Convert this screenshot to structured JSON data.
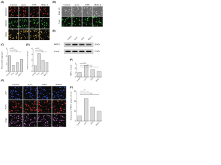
{
  "panels": [
    {
      "label": "(A)",
      "columns": [
        "Control",
        "H₂O₂",
        "DXS",
        "Mdivi-1"
      ],
      "rows": [
        "Mitotracker",
        "MitoSOX",
        "Merge"
      ]
    },
    {
      "label": "(B)",
      "columns": [
        "Control",
        "H₂O₂",
        "DXS",
        "Mdivi-1"
      ],
      "rows": [
        "Bright field",
        "Green"
      ]
    },
    {
      "label": "(E)",
      "columns": [
        "Control",
        "H₂O₂",
        "DXS",
        "Mdivi-1"
      ],
      "bands": [
        "PARP-1",
        "β-actin"
      ],
      "sizes": [
        "89 kDa",
        "42 kDa"
      ]
    },
    {
      "label": "(G)",
      "columns": [
        "Control",
        "H₂O₂",
        "DXS",
        "Mdivi-1"
      ],
      "rows": [
        "DAPI",
        "PARP-1",
        "Merge"
      ]
    }
  ],
  "chart_data": [
    {
      "type": "bar",
      "label": "(C)",
      "ylabel": "Mitochondrial length (μm)",
      "categories": [
        "Control",
        "H₂O₂",
        "DXS",
        "Mdivi-1"
      ],
      "values": [
        2.1,
        0.8,
        1.2,
        1.6
      ],
      "color": "#d9d9d9",
      "ylim": [
        0,
        3
      ],
      "yticks": [
        0,
        1,
        2,
        3
      ],
      "annotations": [
        "****",
        "***",
        "**"
      ]
    },
    {
      "type": "bar",
      "label": "(D)",
      "ylabel": "ROS fluorescence intensity",
      "categories": [
        "Control",
        "H₂O₂",
        "DXS",
        "Mdivi-1"
      ],
      "values": [
        1.0,
        3.2,
        2.0,
        1.6
      ],
      "color": "#d9d9d9",
      "ylim": [
        0,
        4
      ],
      "yticks": [
        0,
        1,
        2,
        3,
        4
      ],
      "annotations": [
        "****",
        "***",
        "****"
      ]
    },
    {
      "type": "bar",
      "label": "(F)",
      "ylabel": "PARP-1 / β-actin",
      "categories": [
        "Control",
        "H₂O₂",
        "DXS",
        "Mdivi-1"
      ],
      "values": [
        1.0,
        2.6,
        1.7,
        1.3
      ],
      "color": "#d9d9d9",
      "ylim": [
        0,
        3
      ],
      "yticks": [
        0,
        1,
        2,
        3
      ],
      "annotations": [
        "****",
        "**",
        "***"
      ]
    },
    {
      "type": "bar",
      "label": "(H)",
      "ylabel": "The proportion of PARP-1 positive cells (%)",
      "categories": [
        "Control",
        "H₂O₂",
        "DXS",
        "Mdivi-1"
      ],
      "values": [
        10,
        45,
        28,
        20
      ],
      "color": "#d9d9d9",
      "ylim": [
        0,
        60
      ],
      "yticks": [
        0,
        20,
        40,
        60
      ],
      "annotations": [
        "****",
        "***",
        "****"
      ]
    }
  ]
}
